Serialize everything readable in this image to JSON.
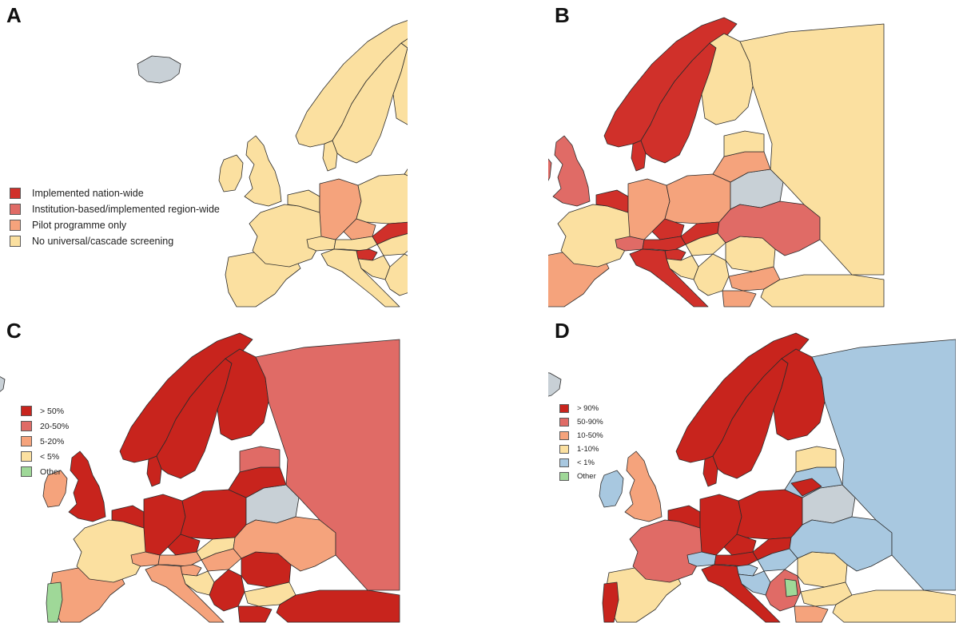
{
  "colors": {
    "land": "#c8d0d6",
    "border": "#2b2b2b"
  },
  "panels": {
    "A": {
      "letter": "A",
      "legend": [
        {
          "label": "Implemented nation-wide",
          "color": "#d0302a"
        },
        {
          "label": "Institution-based/implemented region-wide",
          "color": "#e06b66"
        },
        {
          "label": "Pilot programme only",
          "color": "#f5a37c"
        },
        {
          "label": "No universal/cascade screening",
          "color": "#fbe0a0"
        }
      ],
      "regions": [
        {
          "name": "iceland",
          "category": "none"
        },
        {
          "name": "ireland",
          "category": 3
        },
        {
          "name": "great-britain",
          "category": 3
        },
        {
          "name": "iberia",
          "category": 3
        },
        {
          "name": "france",
          "category": 3
        },
        {
          "name": "benelux",
          "category": 3
        },
        {
          "name": "switzerland",
          "category": 3
        },
        {
          "name": "germany",
          "category": 2
        },
        {
          "name": "denmark",
          "category": 3
        },
        {
          "name": "norway",
          "category": 3
        },
        {
          "name": "sweden",
          "category": 3
        },
        {
          "name": "finland",
          "category": 3
        },
        {
          "name": "poland",
          "category": 3
        },
        {
          "name": "czechia",
          "category": 2
        },
        {
          "name": "austria",
          "category": 3
        },
        {
          "name": "slovakia",
          "category": 0
        },
        {
          "name": "hungary",
          "category": 3
        },
        {
          "name": "slovenia",
          "category": 0
        },
        {
          "name": "croatia",
          "category": 3
        },
        {
          "name": "italy",
          "category": 3
        },
        {
          "name": "balkans-west",
          "category": 3
        },
        {
          "name": "romania",
          "category": 3
        },
        {
          "name": "bulgaria",
          "category": 3
        },
        {
          "name": "greece",
          "category": 2
        },
        {
          "name": "turkey",
          "category": 3
        },
        {
          "name": "belarus",
          "category": "none"
        },
        {
          "name": "ukraine",
          "category": 3
        },
        {
          "name": "russia",
          "category": 3
        },
        {
          "name": "baltics",
          "category": 3
        },
        {
          "name": "estonia",
          "category": 2
        }
      ]
    },
    "B": {
      "letter": "B",
      "regions": [
        {
          "name": "iceland",
          "category": "none"
        },
        {
          "name": "ireland",
          "category": 1
        },
        {
          "name": "great-britain",
          "category": 1
        },
        {
          "name": "iberia",
          "category": 2
        },
        {
          "name": "france",
          "category": 3
        },
        {
          "name": "benelux",
          "category": 0
        },
        {
          "name": "switzerland",
          "category": 1
        },
        {
          "name": "germany",
          "category": 2
        },
        {
          "name": "denmark",
          "category": 0
        },
        {
          "name": "norway",
          "category": 0
        },
        {
          "name": "sweden",
          "category": 0
        },
        {
          "name": "finland",
          "category": 3
        },
        {
          "name": "poland",
          "category": 2
        },
        {
          "name": "czechia",
          "category": 0
        },
        {
          "name": "austria",
          "category": 0
        },
        {
          "name": "slovakia",
          "category": 0
        },
        {
          "name": "hungary",
          "category": 3
        },
        {
          "name": "slovenia",
          "category": 0
        },
        {
          "name": "croatia",
          "category": 3
        },
        {
          "name": "italy",
          "category": 0
        },
        {
          "name": "balkans-west",
          "category": 3
        },
        {
          "name": "romania",
          "category": 3
        },
        {
          "name": "bulgaria",
          "category": 2
        },
        {
          "name": "greece",
          "category": 2
        },
        {
          "name": "turkey",
          "category": 3
        },
        {
          "name": "belarus",
          "category": "none"
        },
        {
          "name": "ukraine",
          "category": 1
        },
        {
          "name": "russia",
          "category": 3
        },
        {
          "name": "baltics",
          "category": 2
        },
        {
          "name": "estonia",
          "category": 3
        }
      ]
    },
    "C": {
      "letter": "C",
      "legend": [
        {
          "label": "> 50%",
          "color": "#c8241d"
        },
        {
          "label": "20-50%",
          "color": "#e06b66"
        },
        {
          "label": "5-20%",
          "color": "#f5a37c"
        },
        {
          "label": "< 5%",
          "color": "#fbe0a0"
        },
        {
          "label": "Other",
          "color": "#9fd898"
        }
      ],
      "regions": [
        {
          "name": "iceland",
          "category": "none"
        },
        {
          "name": "ireland",
          "category": 2
        },
        {
          "name": "great-britain",
          "category": 0
        },
        {
          "name": "iberia",
          "category": 2
        },
        {
          "name": "portugal",
          "category": 4
        },
        {
          "name": "france",
          "category": 3
        },
        {
          "name": "benelux",
          "category": 0
        },
        {
          "name": "switzerland",
          "category": 2
        },
        {
          "name": "germany",
          "category": 0
        },
        {
          "name": "denmark",
          "category": 0
        },
        {
          "name": "norway",
          "category": 0
        },
        {
          "name": "sweden",
          "category": 0
        },
        {
          "name": "finland",
          "category": 0
        },
        {
          "name": "poland",
          "category": 0
        },
        {
          "name": "czechia",
          "category": 0
        },
        {
          "name": "austria",
          "category": 2
        },
        {
          "name": "slovakia",
          "category": 3
        },
        {
          "name": "hungary",
          "category": 2
        },
        {
          "name": "slovenia",
          "category": 2
        },
        {
          "name": "croatia",
          "category": 3
        },
        {
          "name": "italy",
          "category": 2
        },
        {
          "name": "balkans-west",
          "category": 0
        },
        {
          "name": "romania",
          "category": 0
        },
        {
          "name": "moldova",
          "category": 4
        },
        {
          "name": "bulgaria",
          "category": 3
        },
        {
          "name": "greece",
          "category": 0
        },
        {
          "name": "turkey",
          "category": 0
        },
        {
          "name": "belarus",
          "category": "none"
        },
        {
          "name": "ukraine",
          "category": 2
        },
        {
          "name": "russia",
          "category": 1
        },
        {
          "name": "baltics",
          "category": 0
        },
        {
          "name": "estonia",
          "category": 1
        }
      ]
    },
    "D": {
      "letter": "D",
      "legend": [
        {
          "label": "> 90%",
          "color": "#c8241d"
        },
        {
          "label": "50-90%",
          "color": "#e06b66"
        },
        {
          "label": "10-50%",
          "color": "#f5a37c"
        },
        {
          "label": "1-10%",
          "color": "#fbe0a0"
        },
        {
          "label": "< 1%",
          "color": "#a8c8e0"
        },
        {
          "label": "Other",
          "color": "#9fd898"
        }
      ],
      "regions": [
        {
          "name": "iceland",
          "category": "none"
        },
        {
          "name": "ireland",
          "category": 4
        },
        {
          "name": "great-britain",
          "category": 2
        },
        {
          "name": "iberia",
          "category": 3
        },
        {
          "name": "portugal",
          "category": 0
        },
        {
          "name": "france",
          "category": 1
        },
        {
          "name": "benelux",
          "category": 0
        },
        {
          "name": "switzerland",
          "category": 4
        },
        {
          "name": "germany",
          "category": 0
        },
        {
          "name": "denmark",
          "category": 0
        },
        {
          "name": "norway",
          "category": 0
        },
        {
          "name": "sweden",
          "category": 0
        },
        {
          "name": "finland",
          "category": 0
        },
        {
          "name": "poland",
          "category": 0
        },
        {
          "name": "czechia",
          "category": 0
        },
        {
          "name": "austria",
          "category": 0
        },
        {
          "name": "slovakia",
          "category": 0
        },
        {
          "name": "hungary",
          "category": 4
        },
        {
          "name": "slovenia",
          "category": 4
        },
        {
          "name": "croatia",
          "category": 4
        },
        {
          "name": "italy",
          "category": 0
        },
        {
          "name": "balkans-west",
          "category": 1
        },
        {
          "name": "serbia",
          "category": 5
        },
        {
          "name": "romania",
          "category": 3
        },
        {
          "name": "bulgaria",
          "category": 3
        },
        {
          "name": "greece",
          "category": 2
        },
        {
          "name": "turkey",
          "category": 3
        },
        {
          "name": "belarus",
          "category": "none"
        },
        {
          "name": "ukraine",
          "category": 4
        },
        {
          "name": "russia",
          "category": 4
        },
        {
          "name": "baltics",
          "category": 4
        },
        {
          "name": "lithuania",
          "category": 0
        },
        {
          "name": "estonia",
          "category": 3
        }
      ]
    }
  }
}
